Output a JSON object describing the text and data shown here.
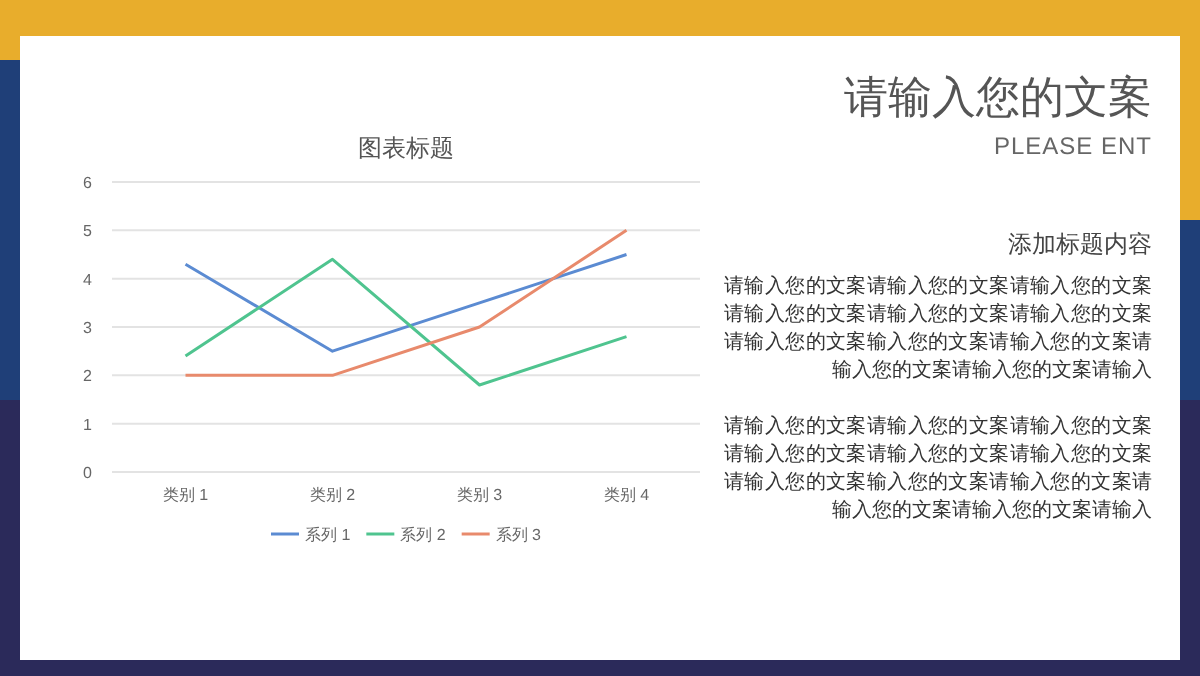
{
  "chart_data": {
    "type": "line",
    "title": "图表标题",
    "categories": [
      "类别 1",
      "类别 2",
      "类别 3",
      "类别 4"
    ],
    "series": [
      {
        "name": "系列 1",
        "color": "#5b8bd2",
        "values": [
          4.3,
          2.5,
          3.5,
          4.5
        ]
      },
      {
        "name": "系列 2",
        "color": "#4fc48f",
        "values": [
          2.4,
          4.4,
          1.8,
          2.8
        ]
      },
      {
        "name": "系列 3",
        "color": "#e88a6c",
        "values": [
          2,
          2,
          3,
          5
        ]
      }
    ],
    "ylim": [
      0,
      6
    ],
    "yticks": [
      0,
      1,
      2,
      3,
      4,
      5,
      6
    ],
    "grid": "y",
    "legend": "bottom",
    "annotations": [
      "请输入您的文案",
      "PLEASE ENT",
      "添加标题内容",
      "请输入您的文案请输入您的文案请输入您的文案请输入您的文案请输入您的文案请输入您的文案请输入您的文案输入您的文案请输入您的文案请输入您的文案请输入您的文案请输入",
      "请输入您的文案请输入您的文案请输入您的文案请输入您的文案请输入您的文案请输入您的文案请输入您的文案输入您的文案请输入您的文案请输入您的文案请输入您的文案请输入"
    ]
  }
}
